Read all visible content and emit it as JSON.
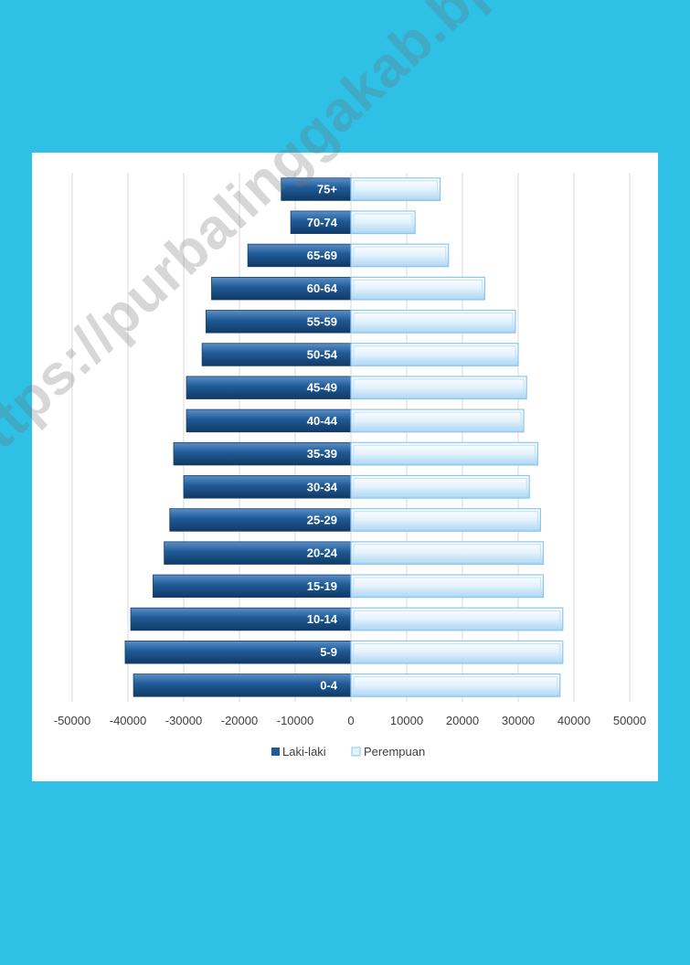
{
  "chart_data": {
    "type": "bar",
    "orientation": "horizontal",
    "categories": [
      "0-4",
      "5-9",
      "10-14",
      "15-19",
      "20-24",
      "25-29",
      "30-34",
      "35-39",
      "40-44",
      "45-49",
      "50-54",
      "55-59",
      "60-64",
      "65-69",
      "70-74",
      "75+"
    ],
    "series": [
      {
        "name": "Laki-laki",
        "color": "#1f5a96",
        "values": [
          -39000,
          -40500,
          -39500,
          -35500,
          -33500,
          -32500,
          -30000,
          -31800,
          -29500,
          -29500,
          -26700,
          -26000,
          -25000,
          -18500,
          -10800,
          -12500
        ]
      },
      {
        "name": "Perempuan",
        "color": "#cfe8f9",
        "values": [
          37500,
          38000,
          38000,
          34500,
          34500,
          34000,
          32000,
          33500,
          31000,
          31500,
          30000,
          29500,
          24000,
          17500,
          11500,
          16000
        ]
      }
    ],
    "x_ticks": [
      "-50000",
      "-40000",
      "-30000",
      "-20000",
      "-10000",
      "0",
      "10000",
      "20000",
      "30000",
      "40000",
      "50000"
    ],
    "xlim": [
      -50000,
      50000
    ],
    "grid": "vertical",
    "legend_position": "bottom"
  },
  "watermark": "https://purbalinggakab.bps.go.id"
}
